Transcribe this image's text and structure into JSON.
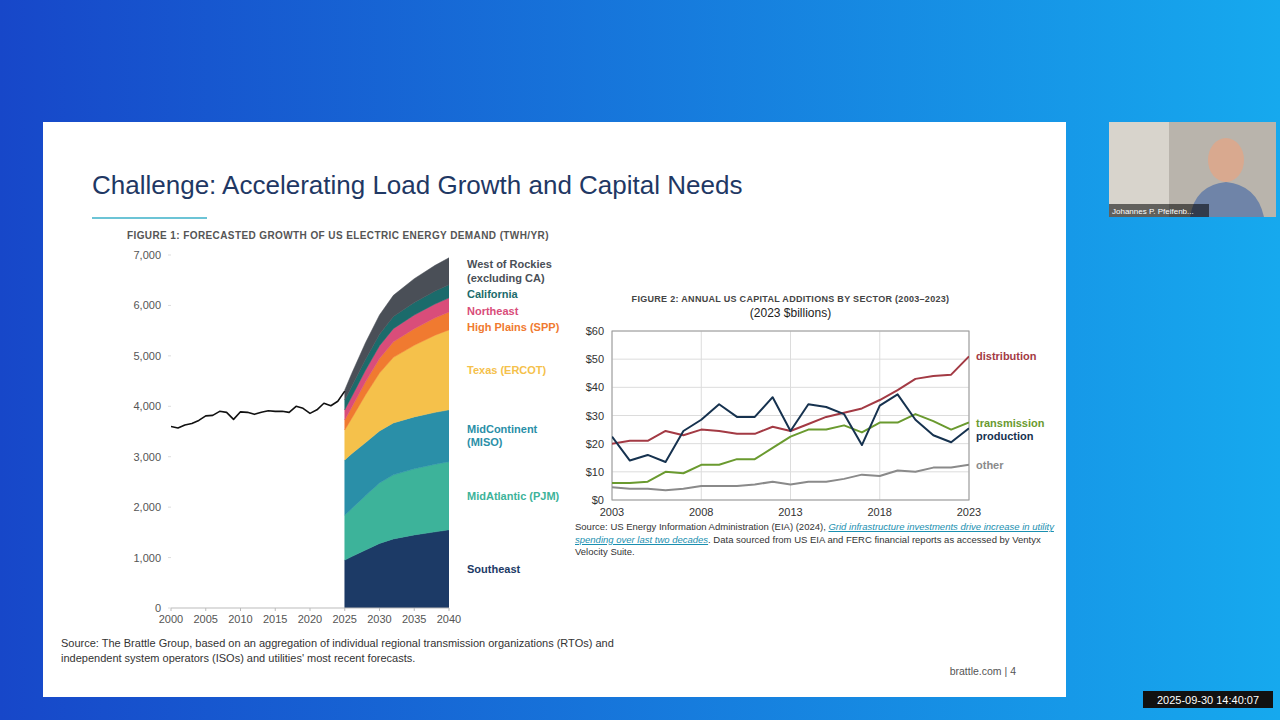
{
  "slide": {
    "title": "Challenge: Accelerating Load Growth and Capital Needs",
    "presenter": "Johannes P. Pfeifenb...",
    "timestamp": "2025-09-30 14:40:07",
    "footer": "brattle.com | 4"
  },
  "chart_data": [
    {
      "type": "area",
      "stacked": true,
      "grid": false,
      "title": "FIGURE 1: FORECASTED GROWTH OF US ELECTRIC ENERGY DEMAND (TWH/YR)",
      "source": "Source: The Brattle Group, based on an aggregation of individual regional transmission organizations (RTOs) and independent system operators (ISOs) and utilities' most recent forecasts.",
      "xlim": [
        2000,
        2040
      ],
      "ylim": [
        0,
        7000
      ],
      "xticks": [
        2000,
        2005,
        2010,
        2015,
        2020,
        2025,
        2030,
        2035,
        2040
      ],
      "yticks": [
        0,
        {
          "value": 1000,
          "label": "1,000"
        },
        {
          "value": 2000,
          "label": "2,000"
        },
        {
          "value": 3000,
          "label": "3,000"
        },
        {
          "value": 4000,
          "label": "4,000"
        },
        {
          "value": 5000,
          "label": "5,000"
        },
        {
          "value": 6000,
          "label": "6,000"
        },
        {
          "value": 7000,
          "label": "7,000"
        }
      ],
      "x": [
        2025,
        2026,
        2028,
        2030,
        2032,
        2035,
        2038,
        2040
      ],
      "series": [
        {
          "type": "line",
          "color": "#111111",
          "x": [
            2000,
            2001,
            2002,
            2003,
            2004,
            2005,
            2006,
            2007,
            2008,
            2009,
            2010,
            2011,
            2012,
            2013,
            2014,
            2015,
            2016,
            2017,
            2018,
            2019,
            2020,
            2021,
            2022,
            2023,
            2024,
            2025
          ],
          "values": [
            3600,
            3570,
            3630,
            3660,
            3720,
            3810,
            3820,
            3900,
            3880,
            3740,
            3890,
            3880,
            3840,
            3880,
            3910,
            3900,
            3900,
            3880,
            4000,
            3960,
            3860,
            3930,
            4060,
            4010,
            4100,
            4300
          ]
        },
        {
          "type": "area",
          "name": "Southeast",
          "color": "#1c3a66",
          "values": [
            950,
            1020,
            1150,
            1280,
            1370,
            1450,
            1510,
            1550
          ]
        },
        {
          "type": "area",
          "name": "MidAtlantic (PJM)",
          "color": "#3db39a",
          "values": [
            895,
            950,
            1080,
            1200,
            1270,
            1310,
            1340,
            1350
          ]
        },
        {
          "type": "area",
          "name": "MidContinent (MISO)",
          "color": "#2a8fa8",
          "values": [
            1090,
            1090,
            1050,
            1030,
            1030,
            1030,
            1030,
            1030
          ]
        },
        {
          "type": "area",
          "name": "Texas (ERCOT)",
          "color": "#f5c14b",
          "values": [
            595,
            700,
            950,
            1150,
            1300,
            1420,
            1530,
            1585
          ]
        },
        {
          "type": "area",
          "name": "High Plains (SPP)",
          "color": "#f07a30",
          "values": [
            200,
            220,
            260,
            290,
            310,
            330,
            345,
            355
          ]
        },
        {
          "type": "area",
          "name": "Northeast",
          "color": "#d94d7a",
          "values": [
            200,
            210,
            230,
            250,
            260,
            270,
            275,
            280
          ]
        },
        {
          "type": "area",
          "name": "California",
          "color": "#1b6b6b",
          "values": [
            195,
            200,
            215,
            230,
            240,
            250,
            255,
            260
          ]
        },
        {
          "type": "area",
          "name": "West of Rockies (excluding CA)",
          "color": "#4a4f57",
          "values": [
            200,
            260,
            330,
            380,
            420,
            470,
            510,
            535
          ]
        }
      ]
    },
    {
      "type": "line",
      "grid": true,
      "title": "FIGURE 2: ANNUAL US CAPITAL ADDITIONS BY SECTOR (2003–2023)",
      "subtitle": "(2023 $billions)",
      "source": {
        "text": "Source: US Energy Information Administration (EIA) (2024), ",
        "link": "Grid infrastructure investments drive increase in utility spending over last two decades",
        "text_after": ". Data sourced from US EIA and FERC financial reports as accessed by Ventyx Velocity Suite."
      },
      "xlim": [
        2003,
        2023
      ],
      "ylim": [
        0,
        60
      ],
      "xticks": [
        2003,
        2008,
        2013,
        2018,
        2023
      ],
      "yticks": [
        {
          "value": 0,
          "label": "$0"
        },
        {
          "value": 10,
          "label": "$10"
        },
        {
          "value": 20,
          "label": "$20"
        },
        {
          "value": 30,
          "label": "$30"
        },
        {
          "value": 40,
          "label": "$40"
        },
        {
          "value": 50,
          "label": "$50"
        },
        {
          "value": 60,
          "label": "$60"
        }
      ],
      "x": [
        2003,
        2004,
        2005,
        2006,
        2007,
        2008,
        2009,
        2010,
        2011,
        2012,
        2013,
        2014,
        2015,
        2016,
        2017,
        2018,
        2019,
        2020,
        2021,
        2022,
        2023
      ],
      "series": [
        {
          "name": "distribution",
          "color": "#a33a44",
          "values": [
            20,
            21,
            21,
            24.5,
            23,
            25,
            24.5,
            23.5,
            23.5,
            26,
            24.5,
            27,
            29.5,
            31,
            32.5,
            35.5,
            39,
            43,
            44,
            44.5,
            51
          ]
        },
        {
          "name": "transmission",
          "color": "#6a9a2f",
          "values": [
            6,
            6,
            6.5,
            10,
            9.5,
            12.5,
            12.5,
            14.5,
            14.5,
            18.5,
            22.5,
            25,
            25,
            26.5,
            24,
            27.5,
            27.5,
            30.5,
            28,
            25,
            27.5
          ]
        },
        {
          "name": "production",
          "color": "#16324f",
          "values": [
            22.5,
            14,
            16,
            13.5,
            24.5,
            28.5,
            34,
            29.5,
            29.5,
            36.5,
            24.5,
            34,
            33,
            30.5,
            19.5,
            33.5,
            37.5,
            28.5,
            23,
            20.5,
            25.5
          ]
        },
        {
          "name": "other",
          "color": "#8a8a8a",
          "values": [
            4.5,
            4,
            4,
            3.5,
            4,
            5,
            5,
            5,
            5.5,
            6.5,
            5.5,
            6.5,
            6.5,
            7.5,
            9,
            8.5,
            10.5,
            10,
            11.5,
            11.5,
            12.5
          ]
        }
      ]
    }
  ]
}
